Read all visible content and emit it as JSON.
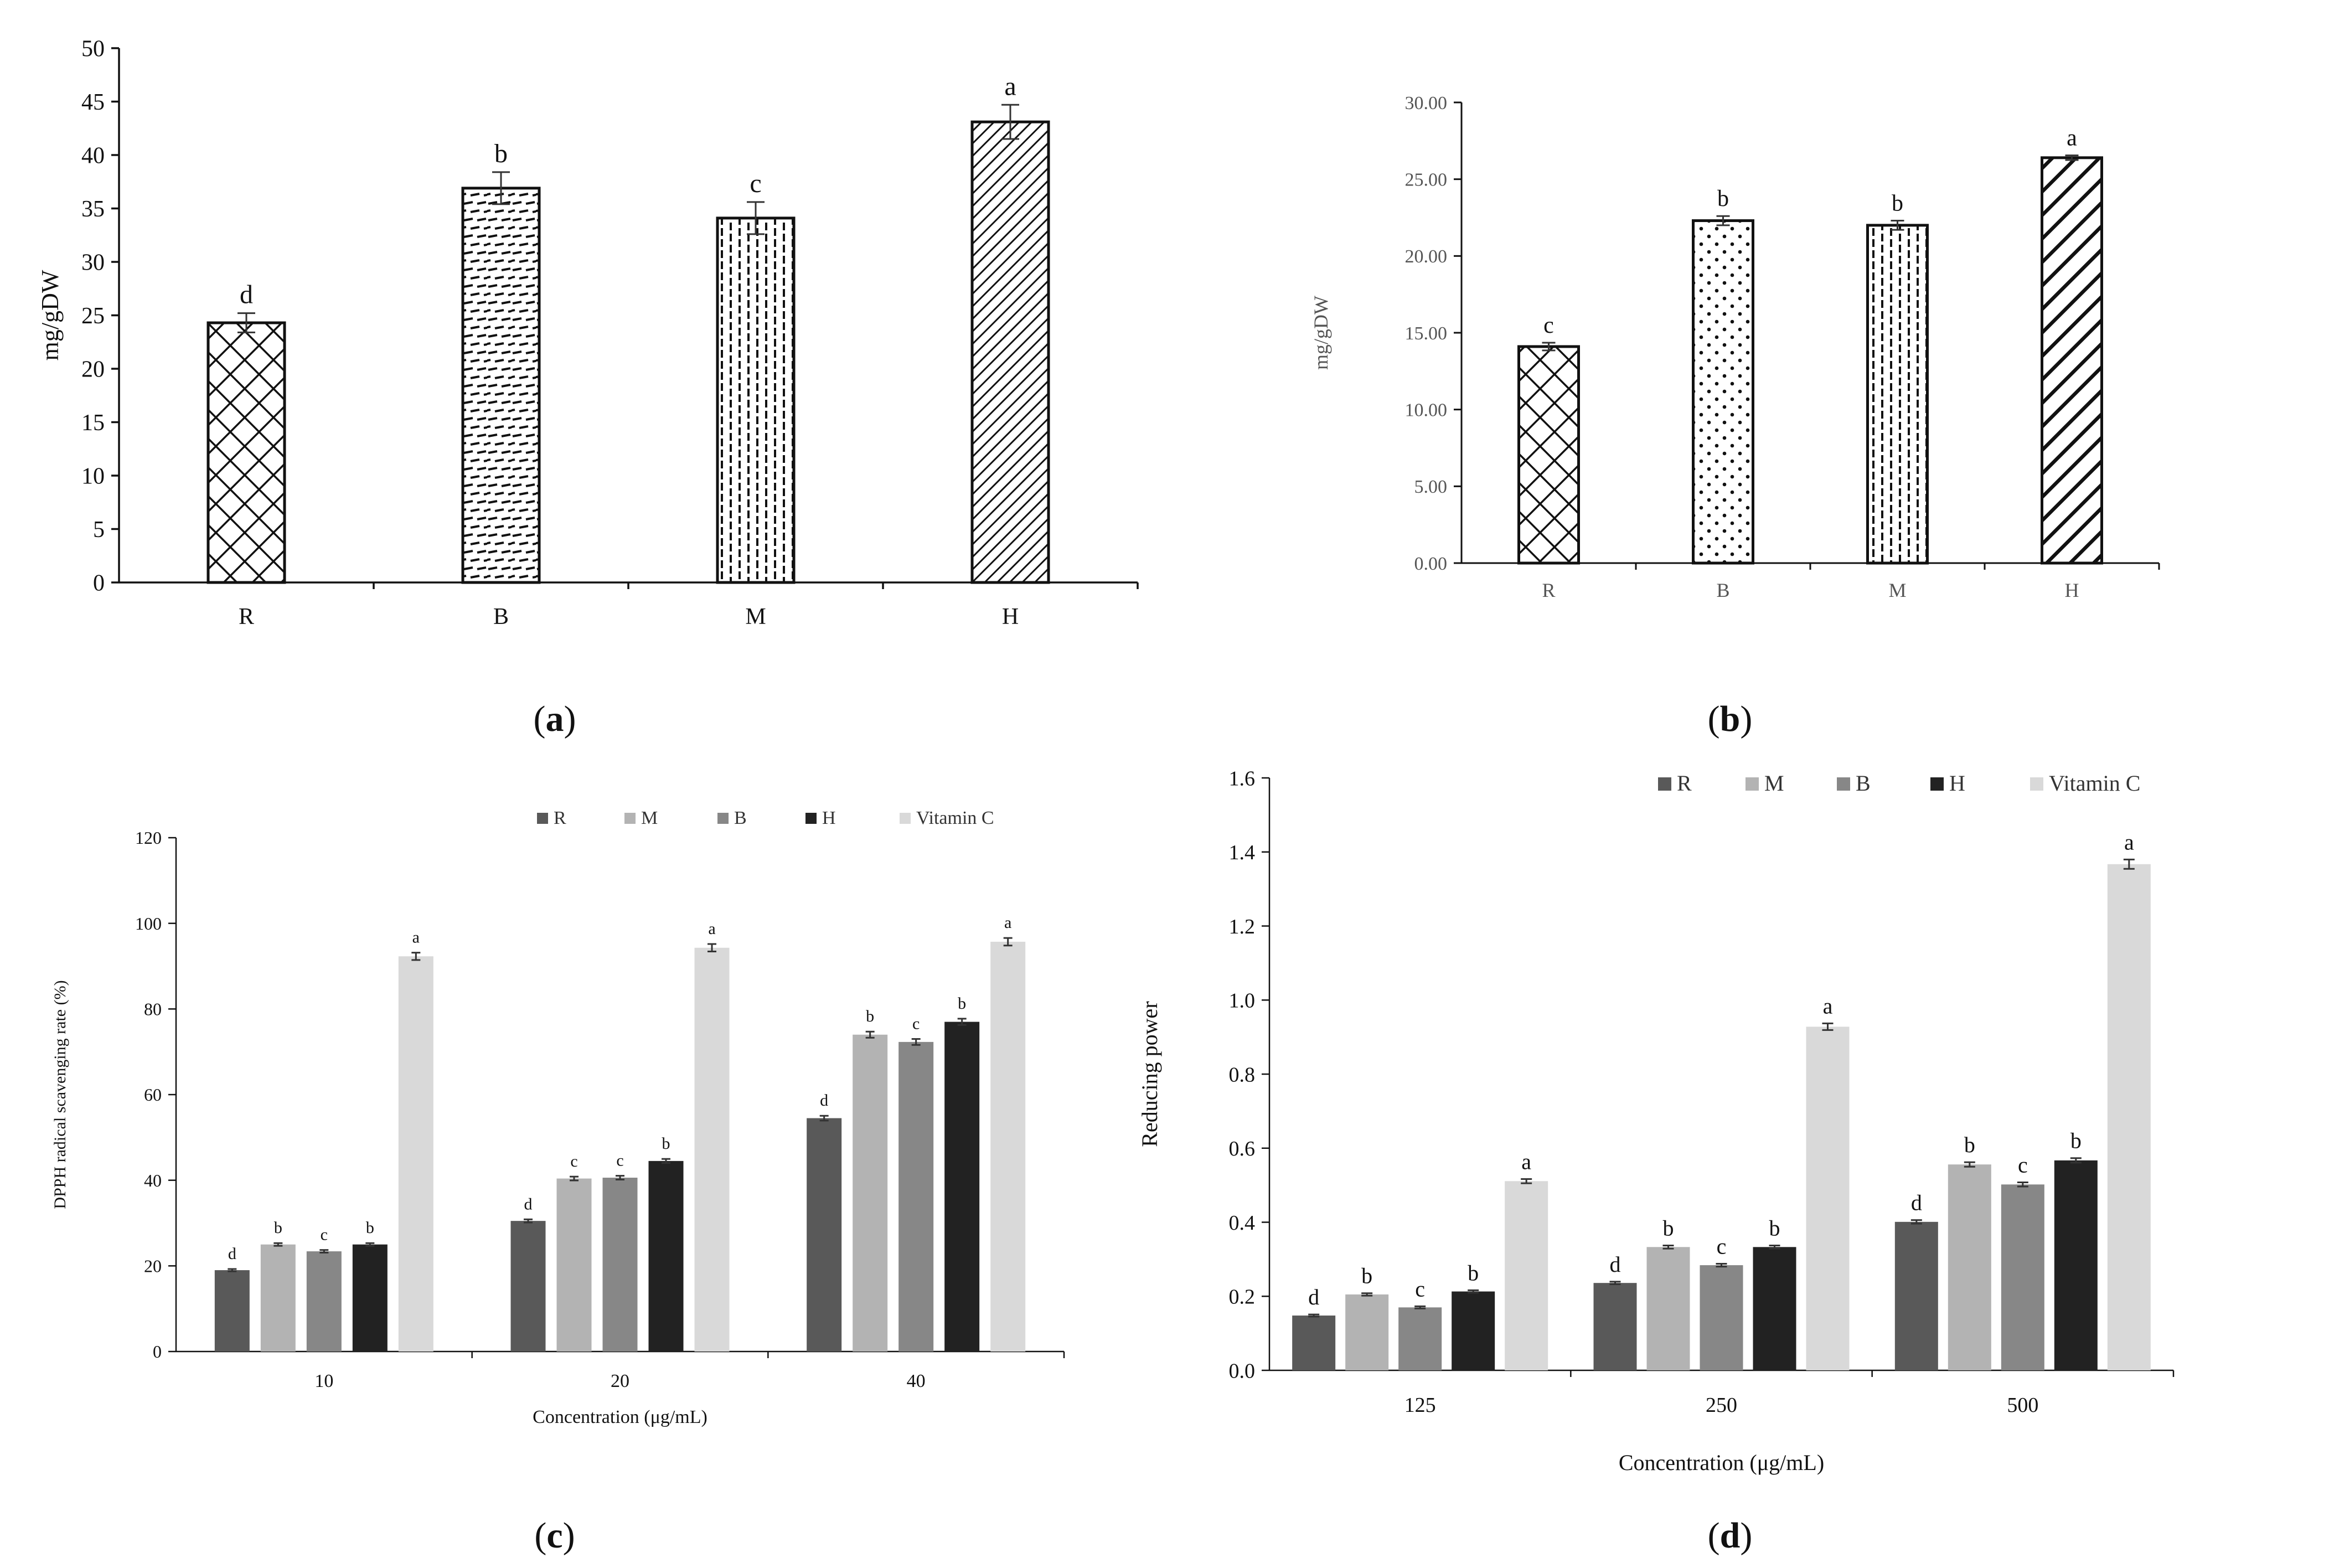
{
  "chart_data": [
    {
      "type": "bar",
      "panel": "(a)",
      "panel_letter": "a",
      "ylabel": "mg/gDW",
      "ylim": [
        0,
        50
      ],
      "ytick_step": 5,
      "ytick_decimals": 0,
      "categories": [
        "R",
        "B",
        "M",
        "H"
      ],
      "values": [
        24.3,
        36.9,
        34.1,
        43.1
      ],
      "errors": [
        0.9,
        1.5,
        1.5,
        1.6
      ],
      "letters": [
        "d",
        "b",
        "c",
        "a"
      ],
      "patterns": [
        "crosshatch",
        "dash-horizontal",
        "dash-vertical",
        "diagonal-dense"
      ]
    },
    {
      "type": "bar",
      "panel": "(b)",
      "panel_letter": "b",
      "ylabel": "mg/gDW",
      "ylim": [
        0,
        30
      ],
      "ytick_step": 5,
      "ytick_decimals": 2,
      "categories": [
        "R",
        "B",
        "M",
        "H"
      ],
      "values": [
        14.1,
        22.3,
        22.0,
        26.4
      ],
      "errors": [
        0.25,
        0.3,
        0.3,
        0.15
      ],
      "letters": [
        "c",
        "b",
        "b",
        "a"
      ],
      "patterns": [
        "crosshatch",
        "dots",
        "dash-vertical",
        "diagonal-bold"
      ]
    },
    {
      "type": "bar",
      "panel": "(c)",
      "panel_letter": "c",
      "xlabel": "Concentration (μg/mL)",
      "ylabel": "DPPH radical scavenging rate (%)",
      "ylim": [
        0,
        120
      ],
      "ytick_step": 20,
      "ytick_decimals": 0,
      "categories": [
        "10",
        "20",
        "40"
      ],
      "legend_position": "top",
      "series": [
        {
          "name": "R",
          "color": "#595959",
          "values": [
            19.0,
            30.5,
            54.5
          ],
          "letters": [
            "d",
            "d",
            "d"
          ]
        },
        {
          "name": "M",
          "color": "#b3b3b3",
          "values": [
            25.0,
            40.4,
            74.0
          ],
          "letters": [
            "b",
            "c",
            "b"
          ]
        },
        {
          "name": "B",
          "color": "#878787",
          "values": [
            23.4,
            40.6,
            72.3
          ],
          "letters": [
            "c",
            "c",
            "c"
          ]
        },
        {
          "name": "H",
          "color": "#222222",
          "values": [
            25.0,
            44.5,
            77.0
          ],
          "letters": [
            "b",
            "b",
            "b"
          ]
        },
        {
          "name": "Vitamin C",
          "color": "#d9d9d9",
          "values": [
            92.3,
            94.3,
            95.7
          ],
          "letters": [
            "a",
            "a",
            "a"
          ]
        }
      ]
    },
    {
      "type": "bar",
      "panel": "(d)",
      "panel_letter": "d",
      "xlabel": "Concentration (μg/mL)",
      "ylabel": "Reducing power",
      "ylim": [
        0,
        1.6
      ],
      "ytick_step": 0.2,
      "ytick_decimals": 1,
      "categories": [
        "125",
        "250",
        "500"
      ],
      "legend_position": "top",
      "series": [
        {
          "name": "R",
          "color": "#595959",
          "values": [
            0.148,
            0.236,
            0.401
          ],
          "letters": [
            "d",
            "d",
            "d"
          ]
        },
        {
          "name": "M",
          "color": "#b3b3b3",
          "values": [
            0.205,
            0.333,
            0.556
          ],
          "letters": [
            "b",
            "b",
            "b"
          ]
        },
        {
          "name": "B",
          "color": "#878787",
          "values": [
            0.17,
            0.284,
            0.502
          ],
          "letters": [
            "c",
            "c",
            "c"
          ]
        },
        {
          "name": "H",
          "color": "#222222",
          "values": [
            0.213,
            0.333,
            0.567
          ],
          "letters": [
            "b",
            "b",
            "b"
          ]
        },
        {
          "name": "Vitamin C",
          "color": "#d9d9d9",
          "values": [
            0.511,
            0.928,
            1.367
          ],
          "letters": [
            "a",
            "a",
            "a"
          ]
        }
      ]
    }
  ]
}
